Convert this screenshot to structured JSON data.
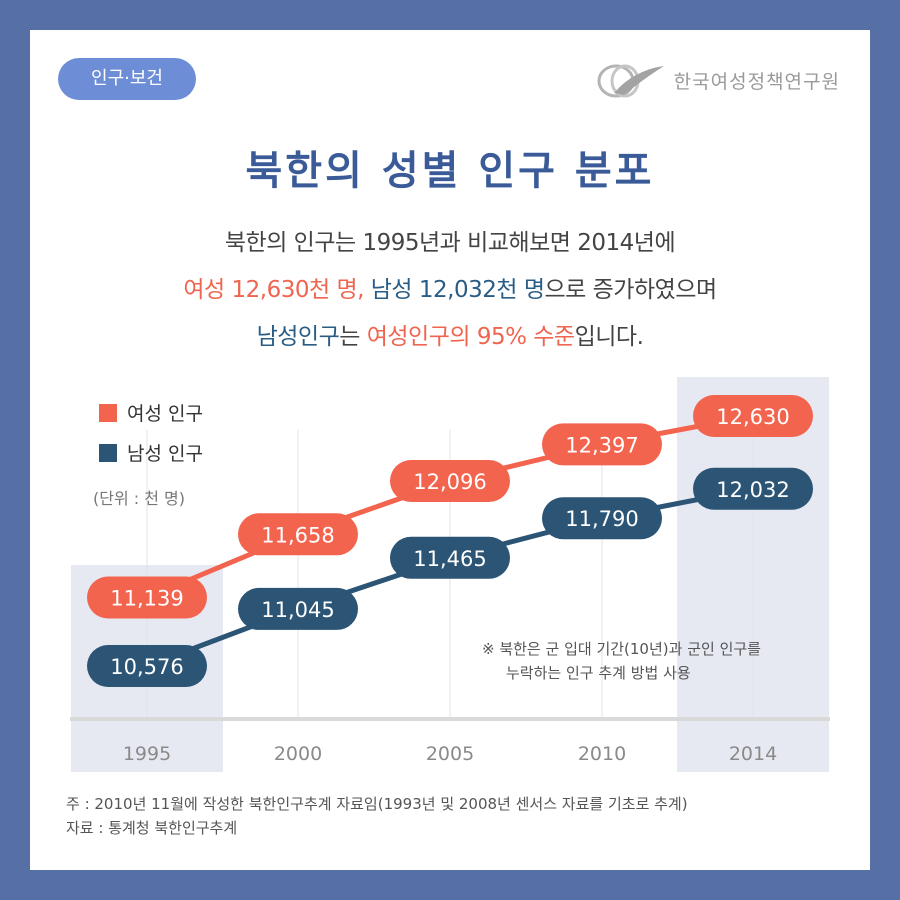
{
  "header": {
    "tag": "인구·보건",
    "org_name": "한국여성정책연구원"
  },
  "title": "북한의 성별 인구 분포",
  "subtitle": {
    "line1": "북한의 인구는 1995년과 비교해보면 2014년에",
    "line2_female": "여성 12,630천 명,",
    "line2_male": "남성 12,032천 명",
    "line2_rest": "으로 증가하였으며",
    "line3_male": "남성인구",
    "line3_mid": "는",
    "line3_female": "여성인구의 95% 수준",
    "line3_end": "입니다."
  },
  "chart_data": {
    "type": "line",
    "x": [
      "1995",
      "2000",
      "2005",
      "2010",
      "2014"
    ],
    "series": [
      {
        "name": "여성 인구",
        "color": "#f3644f",
        "values": [
          11139,
          11658,
          12096,
          12397,
          12630
        ],
        "labels": [
          "11,139",
          "11,658",
          "12,096",
          "12,397",
          "12,630"
        ]
      },
      {
        "name": "남성 인구",
        "color": "#2b5475",
        "values": [
          10576,
          11045,
          11465,
          11790,
          12032
        ],
        "labels": [
          "10,576",
          "11,045",
          "11,465",
          "11,790",
          "12,032"
        ]
      }
    ],
    "unit": "(단위 : 천 명)",
    "highlight_years": [
      "1995",
      "2014"
    ],
    "legend_position": "top-left",
    "annotation": {
      "line1": "※  북한은 군 입대 기간(10년)과 군인 인구를",
      "line2": "누락하는 인구 추계 방법 사용"
    }
  },
  "notes": {
    "note": "주 : 2010년 11월에 작성한 북한인구추계 자료임(1993년 및 2008년 센서스 자료를 기초로 추계)",
    "source": "자료 : 통계청 북한인구추계"
  }
}
